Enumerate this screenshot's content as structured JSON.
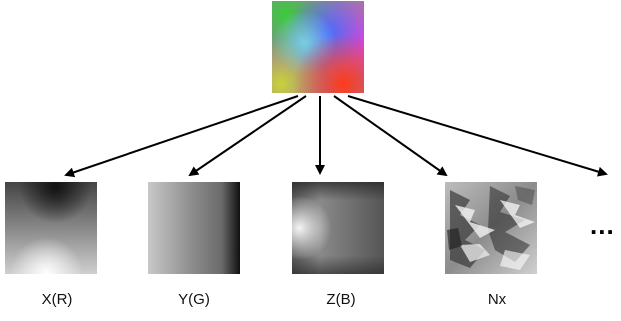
{
  "source_image": {
    "name": "rgb-normal-map"
  },
  "channels": [
    {
      "label": "X(R)"
    },
    {
      "label": "Y(G)"
    },
    {
      "label": "Z(B)"
    },
    {
      "label": "Nx"
    }
  ],
  "ellipsis": "..."
}
